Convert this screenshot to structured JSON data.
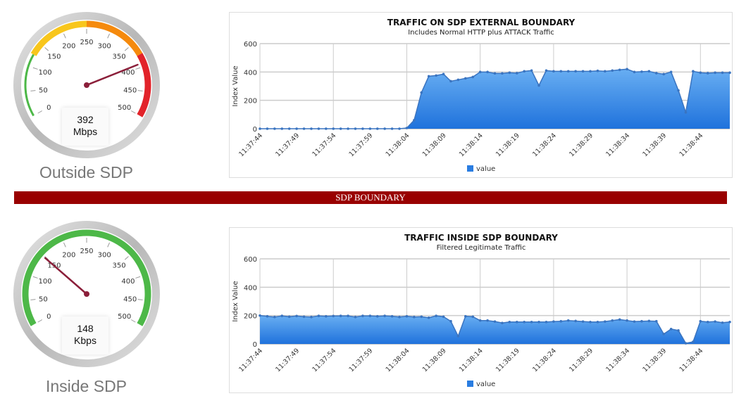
{
  "colors": {
    "accent": "#2a7de1",
    "boundary": "#990000",
    "needle": "#8b1f3a",
    "green": "#4db848",
    "yellow": "#f8c61c",
    "orange": "#f58a0d",
    "red": "#e2232a"
  },
  "gauges": [
    {
      "label": "Outside SDP",
      "value": 392,
      "value_text": "392",
      "unit": "Mbps",
      "min": 0,
      "max": 500,
      "ticks": [
        "0",
        "50",
        "100",
        "150",
        "200",
        "250",
        "300",
        "350",
        "400",
        "450",
        "500"
      ],
      "bands": [
        {
          "from": 0,
          "to": 125,
          "color": "#4db848"
        },
        {
          "from": 125,
          "to": 250,
          "color": "#f8c61c"
        },
        {
          "from": 250,
          "to": 375,
          "color": "#f58a0d"
        },
        {
          "from": 375,
          "to": 500,
          "color": "#e2232a"
        }
      ]
    },
    {
      "label": "Inside SDP",
      "value": 148,
      "value_text": "148",
      "unit": "Kbps",
      "min": 0,
      "max": 500,
      "ticks": [
        "0",
        "50",
        "100",
        "150",
        "200",
        "250",
        "300",
        "350",
        "400",
        "450",
        "500"
      ],
      "bands": [
        {
          "from": 0,
          "to": 500,
          "color": "#4db848"
        }
      ]
    }
  ],
  "boundary_label": "SDP BOUNDARY",
  "chart_data": [
    {
      "type": "area",
      "title": "TRAFFIC ON SDP EXTERNAL BOUNDARY",
      "subtitle": "Includes Normal HTTP plus ATTACK Traffic",
      "ylabel": "Index Value",
      "ylim": [
        0,
        600
      ],
      "yticks": [
        "0",
        "200",
        "400",
        "600"
      ],
      "xticks": [
        "11:37:44",
        "11:37:49",
        "11:37:54",
        "11:37:59",
        "11:38:04",
        "11:38:09",
        "11:38:14",
        "11:38:19",
        "11:38:24",
        "11:38:29",
        "11:38:34",
        "11:38:39",
        "11:38:44"
      ],
      "x_range": [
        "11:37:44",
        "11:38:48"
      ],
      "grid": true,
      "legend": "bottom",
      "series": [
        {
          "name": "value",
          "color": "#2a7de1",
          "values": [
            0,
            0,
            0,
            0,
            0,
            0,
            0,
            0,
            0,
            0,
            0,
            0,
            0,
            0,
            0,
            0,
            0,
            0,
            0,
            0,
            5,
            60,
            255,
            370,
            375,
            385,
            335,
            345,
            355,
            365,
            400,
            400,
            390,
            390,
            395,
            392,
            405,
            410,
            305,
            410,
            405,
            405,
            405,
            405,
            405,
            405,
            408,
            405,
            410,
            415,
            420,
            400,
            402,
            405,
            392,
            385,
            400,
            270,
            115,
            405,
            395,
            392,
            395,
            395,
            395
          ]
        }
      ]
    },
    {
      "type": "area",
      "title": "TRAFFIC INSIDE SDP BOUNDARY",
      "subtitle": "Filtered Legitimate Traffic",
      "ylabel": "Index Value",
      "ylim": [
        0,
        600
      ],
      "yticks": [
        "0",
        "200",
        "400",
        "600"
      ],
      "xticks": [
        "11:37:44",
        "11:37:49",
        "11:37:54",
        "11:37:59",
        "11:38:04",
        "11:38:09",
        "11:38:14",
        "11:38:19",
        "11:38:24",
        "11:38:29",
        "11:38:34",
        "11:38:39",
        "11:38:44"
      ],
      "x_range": [
        "11:37:44",
        "11:38:48"
      ],
      "grid": true,
      "legend": "bottom",
      "series": [
        {
          "name": "value",
          "color": "#2a7de1",
          "values": [
            200,
            195,
            190,
            198,
            192,
            197,
            192,
            190,
            198,
            195,
            197,
            198,
            198,
            190,
            198,
            198,
            195,
            198,
            195,
            190,
            195,
            190,
            192,
            185,
            198,
            192,
            160,
            55,
            195,
            192,
            165,
            165,
            158,
            148,
            155,
            155,
            155,
            155,
            155,
            155,
            158,
            160,
            165,
            162,
            158,
            155,
            155,
            158,
            165,
            172,
            165,
            158,
            160,
            162,
            160,
            70,
            105,
            95,
            5,
            15,
            160,
            155,
            158,
            150,
            155
          ]
        }
      ]
    }
  ]
}
